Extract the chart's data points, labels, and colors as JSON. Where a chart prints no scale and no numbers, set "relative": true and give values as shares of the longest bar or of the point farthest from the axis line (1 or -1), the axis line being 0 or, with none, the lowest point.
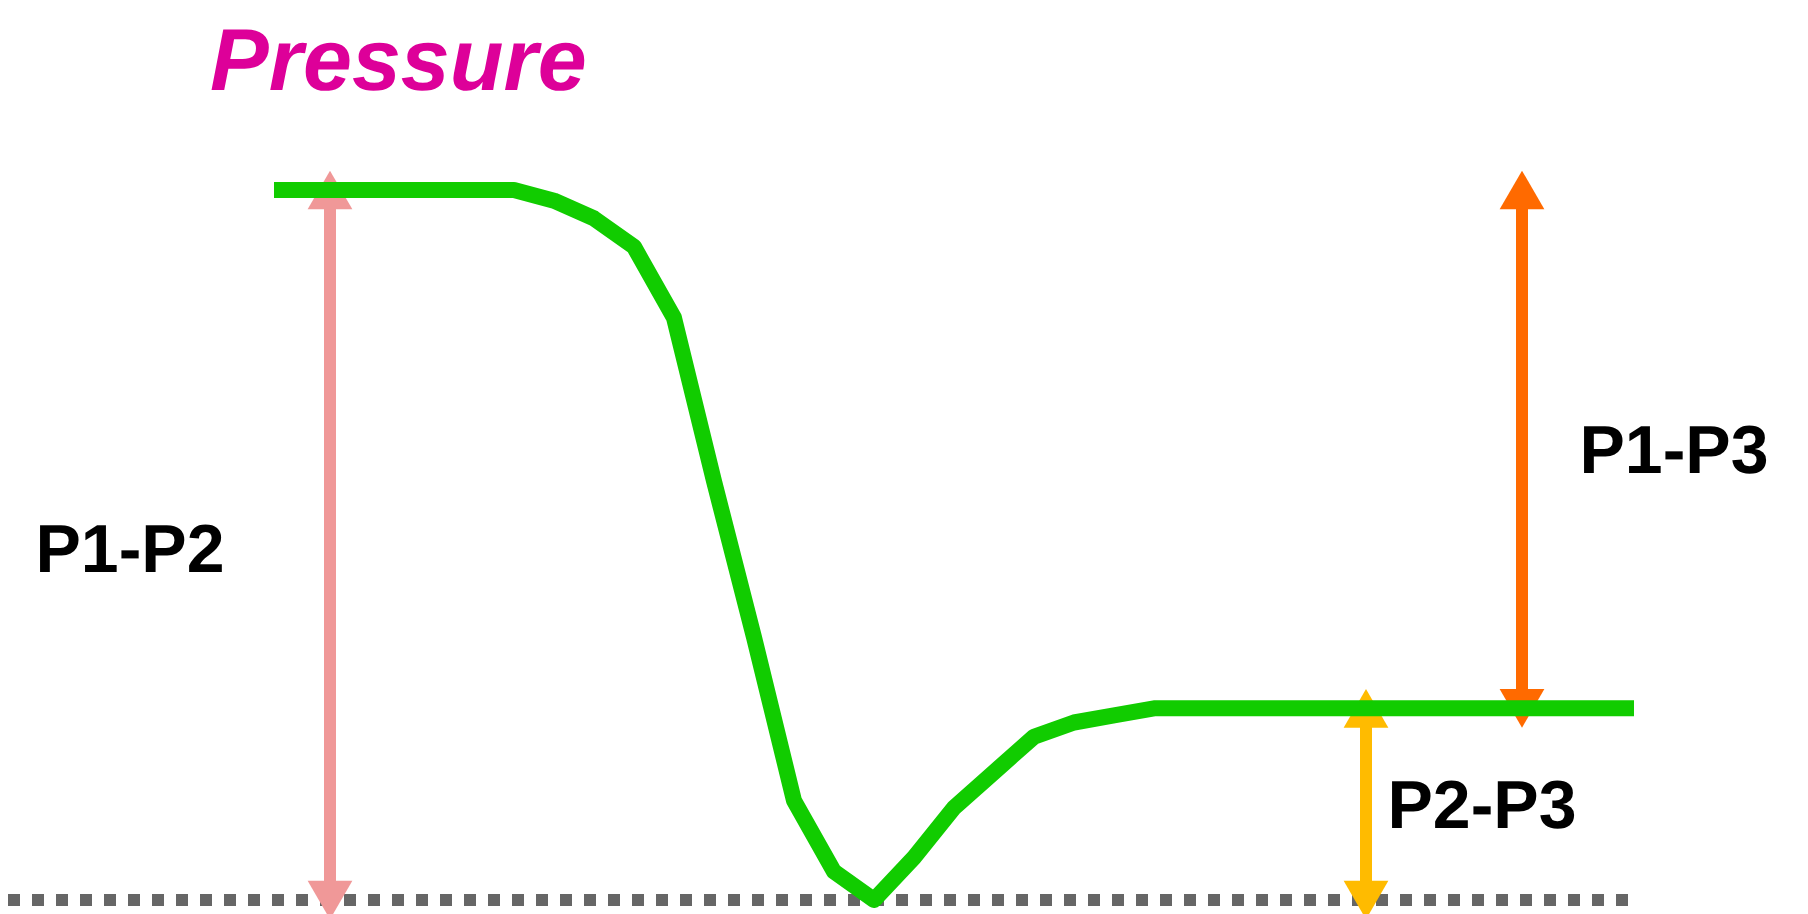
{
  "chart_data": {
    "type": "line",
    "title": "Pressure",
    "relative": true,
    "categories": [
      null,
      null,
      null,
      null,
      null,
      null,
      null,
      null,
      null,
      null,
      null,
      null,
      null,
      null,
      null,
      null,
      null,
      null,
      null,
      null,
      null,
      null,
      null,
      null,
      null,
      null,
      null,
      null,
      null,
      null,
      null,
      null,
      null,
      null,
      null
    ],
    "series": [
      {
        "color": "#11cc00",
        "values": [
          1,
          1,
          1,
          1,
          1,
          1,
          1,
          0.985,
          0.96,
          0.92,
          0.82,
          0.59,
          0.37,
          0.14,
          0.04,
          0,
          0.06,
          0.13,
          0.18,
          0.23,
          0.25,
          0.26,
          0.27,
          0.27,
          0.27,
          0.27,
          0.27,
          0.27,
          0.27,
          0.27,
          0.27,
          0.27,
          0.27,
          0.27,
          0.27
        ]
      }
    ],
    "annotations": [
      "P1-P2",
      "P1-P3",
      "P2-P3"
    ],
    "ref_lines": [
      {
        "axis": "y",
        "value": 0,
        "color": "#666666",
        "line_style": "dotted"
      }
    ]
  }
}
